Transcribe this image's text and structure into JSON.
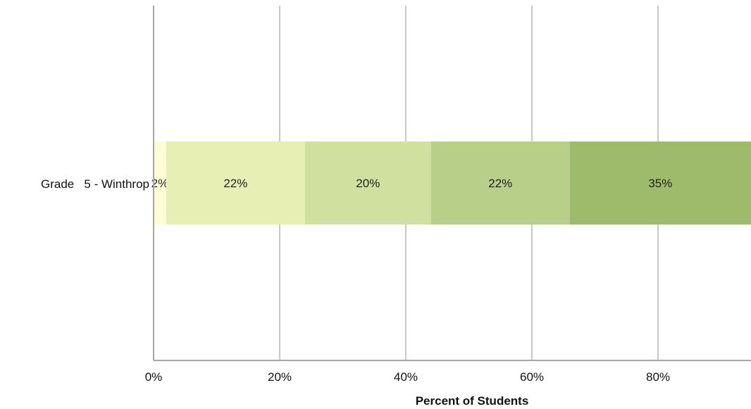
{
  "chart_data": {
    "type": "bar",
    "orientation": "horizontal",
    "stacked": true,
    "categories": [
      "Grade   5 - Winthrop"
    ],
    "series": [
      {
        "values": [
          2
        ],
        "label": "2%",
        "color": "#fffdd4"
      },
      {
        "values": [
          22
        ],
        "label": "22%",
        "color": "#e7efb4"
      },
      {
        "values": [
          20
        ],
        "label": "20%",
        "color": "#d0e09e"
      },
      {
        "values": [
          22
        ],
        "label": "22%",
        "color": "#b8cf89"
      },
      {
        "values": [
          35
        ],
        "label": "35%",
        "color": "#9dbb6a"
      }
    ],
    "xlabel": "Percent of Students",
    "xlim": [
      0,
      95
    ],
    "xticks": [
      0,
      20,
      40,
      60,
      80
    ],
    "xtick_labels": [
      "0%",
      "20%",
      "40%",
      "60%",
      "80%"
    ],
    "grid": true,
    "legend": "none"
  }
}
